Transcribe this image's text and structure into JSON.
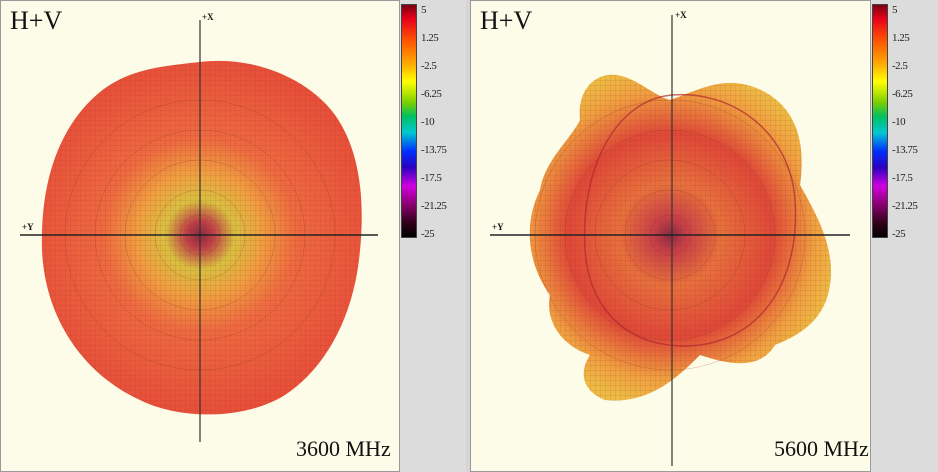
{
  "panels": [
    {
      "title": "H+V",
      "frequency": "3600 MHz",
      "axis_x": "+X",
      "axis_y": "+Y"
    },
    {
      "title": "H+V",
      "frequency": "5600 MHz",
      "axis_x": "+X",
      "axis_y": "+Y"
    }
  ],
  "colorbar": {
    "ticks": [
      "5",
      "1.25",
      "-2.5",
      "-6.25",
      "-10",
      "-13.75",
      "-17.5",
      "-21.25",
      "-25"
    ],
    "min": -25,
    "max": 5
  },
  "colors": {
    "background": "#fdfce8",
    "pattern_main": "#e8503a",
    "pattern_low": "#e8d840"
  }
}
